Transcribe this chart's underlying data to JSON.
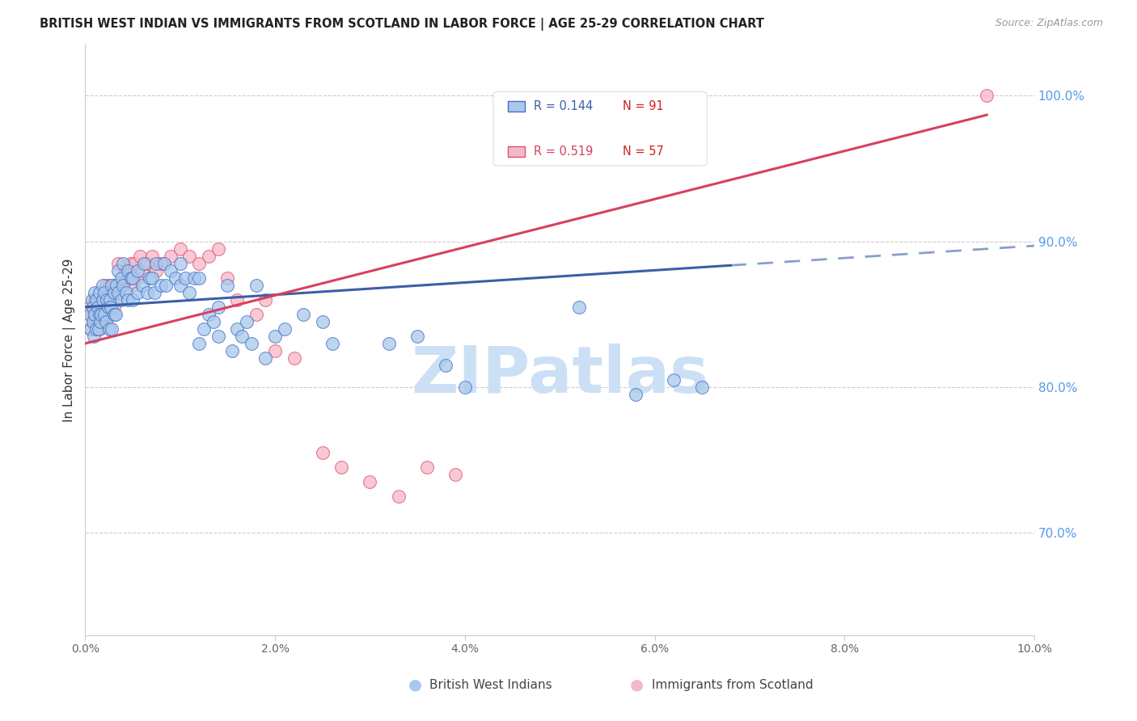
{
  "title": "BRITISH WEST INDIAN VS IMMIGRANTS FROM SCOTLAND IN LABOR FORCE | AGE 25-29 CORRELATION CHART",
  "source": "Source: ZipAtlas.com",
  "ylabel": "In Labor Force | Age 25-29",
  "xlim": [
    0.0,
    10.0
  ],
  "ylim": [
    63.0,
    103.5
  ],
  "y_ticks": [
    70.0,
    80.0,
    90.0,
    100.0
  ],
  "y_tick_labels": [
    "70.0%",
    "80.0%",
    "90.0%",
    "100.0%"
  ],
  "x_ticks": [
    0,
    2,
    4,
    6,
    8,
    10
  ],
  "x_tick_labels": [
    "0.0%",
    "2.0%",
    "4.0%",
    "6.0%",
    "8.0%",
    "10.0%"
  ],
  "legend_blue_label": "British West Indians",
  "legend_pink_label": "Immigrants from Scotland",
  "r_blue": "R = 0.144",
  "n_blue": "N = 91",
  "r_pink": "R = 0.519",
  "n_pink": "N = 57",
  "blue_face": "#a8c8ec",
  "blue_edge": "#4472c4",
  "pink_face": "#f5b8c8",
  "pink_edge": "#e05070",
  "blue_line": "#3a5fa8",
  "pink_line": "#d84060",
  "right_tick_color": "#5599ee",
  "grid_color": "#cccccc",
  "watermark_color": "#cce0f5",
  "blue_intercept": 85.5,
  "blue_slope": 0.42,
  "pink_intercept": 83.0,
  "pink_slope": 1.65,
  "blue_solid_end": 6.8,
  "blue_dashed_end": 10.0,
  "pink_solid_end": 9.5,
  "blue_pts_x": [
    0.05,
    0.06,
    0.07,
    0.08,
    0.08,
    0.09,
    0.1,
    0.1,
    0.12,
    0.12,
    0.13,
    0.14,
    0.15,
    0.15,
    0.16,
    0.17,
    0.18,
    0.18,
    0.2,
    0.2,
    0.22,
    0.23,
    0.24,
    0.25,
    0.26,
    0.27,
    0.28,
    0.28,
    0.3,
    0.3,
    0.32,
    0.33,
    0.35,
    0.35,
    0.38,
    0.38,
    0.4,
    0.4,
    0.43,
    0.45,
    0.45,
    0.48,
    0.5,
    0.5,
    0.55,
    0.55,
    0.6,
    0.62,
    0.65,
    0.68,
    0.7,
    0.73,
    0.75,
    0.8,
    0.83,
    0.85,
    0.9,
    0.95,
    1.0,
    1.0,
    1.05,
    1.1,
    1.15,
    1.2,
    1.3,
    1.4,
    1.5,
    1.6,
    1.7,
    1.8,
    2.0,
    2.1,
    2.3,
    2.5,
    2.6,
    3.2,
    3.5,
    3.8,
    4.0,
    5.2,
    5.8,
    6.2,
    6.5,
    1.2,
    1.25,
    1.35,
    1.4,
    1.55,
    1.65,
    1.75,
    1.9
  ],
  "blue_pts_y": [
    85.0,
    84.0,
    86.0,
    84.5,
    85.5,
    83.5,
    85.0,
    86.5,
    84.0,
    86.0,
    85.5,
    84.0,
    85.0,
    86.5,
    84.5,
    85.0,
    86.0,
    87.0,
    85.0,
    86.5,
    84.5,
    86.0,
    85.5,
    84.0,
    86.0,
    85.5,
    84.0,
    87.0,
    85.0,
    86.5,
    85.0,
    87.0,
    86.5,
    88.0,
    86.0,
    87.5,
    87.0,
    88.5,
    86.5,
    86.0,
    88.0,
    87.5,
    86.0,
    87.5,
    86.5,
    88.0,
    87.0,
    88.5,
    86.5,
    87.5,
    87.5,
    86.5,
    88.5,
    87.0,
    88.5,
    87.0,
    88.0,
    87.5,
    87.0,
    88.5,
    87.5,
    86.5,
    87.5,
    87.5,
    85.0,
    85.5,
    87.0,
    84.0,
    84.5,
    87.0,
    83.5,
    84.0,
    85.0,
    84.5,
    83.0,
    83.0,
    83.5,
    81.5,
    80.0,
    85.5,
    79.5,
    80.5,
    80.0,
    83.0,
    84.0,
    84.5,
    83.5,
    82.5,
    83.5,
    83.0,
    82.0
  ],
  "pink_pts_x": [
    0.05,
    0.06,
    0.07,
    0.08,
    0.1,
    0.1,
    0.12,
    0.14,
    0.15,
    0.15,
    0.16,
    0.18,
    0.18,
    0.2,
    0.2,
    0.22,
    0.24,
    0.25,
    0.25,
    0.28,
    0.3,
    0.3,
    0.32,
    0.35,
    0.38,
    0.4,
    0.42,
    0.45,
    0.48,
    0.5,
    0.52,
    0.55,
    0.58,
    0.6,
    0.65,
    0.7,
    0.75,
    0.8,
    0.9,
    1.0,
    1.1,
    1.2,
    1.3,
    1.4,
    1.5,
    1.6,
    1.8,
    2.0,
    2.2,
    2.5,
    2.7,
    3.0,
    3.3,
    3.6,
    3.9,
    9.5,
    1.9
  ],
  "pink_pts_y": [
    85.5,
    84.0,
    85.0,
    84.5,
    86.0,
    85.0,
    84.5,
    86.0,
    85.0,
    84.0,
    86.5,
    84.5,
    85.5,
    85.0,
    86.0,
    87.0,
    86.5,
    85.0,
    87.0,
    86.5,
    85.5,
    87.0,
    86.0,
    88.5,
    87.0,
    87.5,
    88.0,
    87.5,
    88.5,
    87.0,
    88.5,
    87.5,
    89.0,
    88.0,
    88.5,
    89.0,
    88.0,
    88.5,
    89.0,
    89.5,
    89.0,
    88.5,
    89.0,
    89.5,
    87.5,
    86.0,
    85.0,
    82.5,
    82.0,
    75.5,
    74.5,
    73.5,
    72.5,
    74.5,
    74.0,
    100.0,
    86.0
  ]
}
